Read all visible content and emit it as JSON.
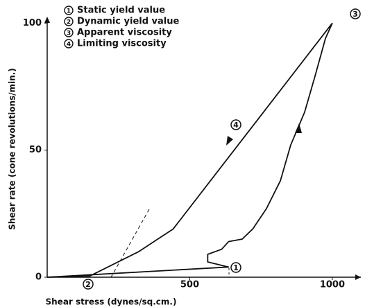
{
  "chart_data": {
    "type": "line",
    "xlabel": "Shear stress (dynes/sq.cm.)",
    "ylabel": "Shear rate (cone revolutions/min.)",
    "xlim": [
      0,
      1100
    ],
    "xticks": [
      500,
      1000
    ],
    "ylim": [
      0,
      102
    ],
    "yticks": [
      0,
      50,
      100
    ],
    "legend_items": [
      {
        "marker": "1",
        "text": "Static yield value"
      },
      {
        "marker": "2",
        "text": "Dynamic yield value"
      },
      {
        "marker": "3",
        "text": "Apparent viscosity"
      },
      {
        "marker": "4",
        "text": "Limiting viscosity"
      }
    ],
    "series": [
      {
        "color": "#111111",
        "x": [
          0,
          636,
          563,
          563,
          612,
          636,
          684,
          721,
          769,
          818,
          854,
          903,
          939,
          976,
          1000
        ],
        "values": [
          0,
          4,
          6,
          9,
          11,
          14,
          15,
          19,
          27,
          38,
          52,
          65,
          79,
          94,
          100
        ]
      },
      {
        "color": "#111111",
        "x": [
          1000,
          442,
          320,
          150,
          0
        ],
        "values": [
          100,
          19,
          10,
          0.5,
          0
        ]
      }
    ]
  }
}
